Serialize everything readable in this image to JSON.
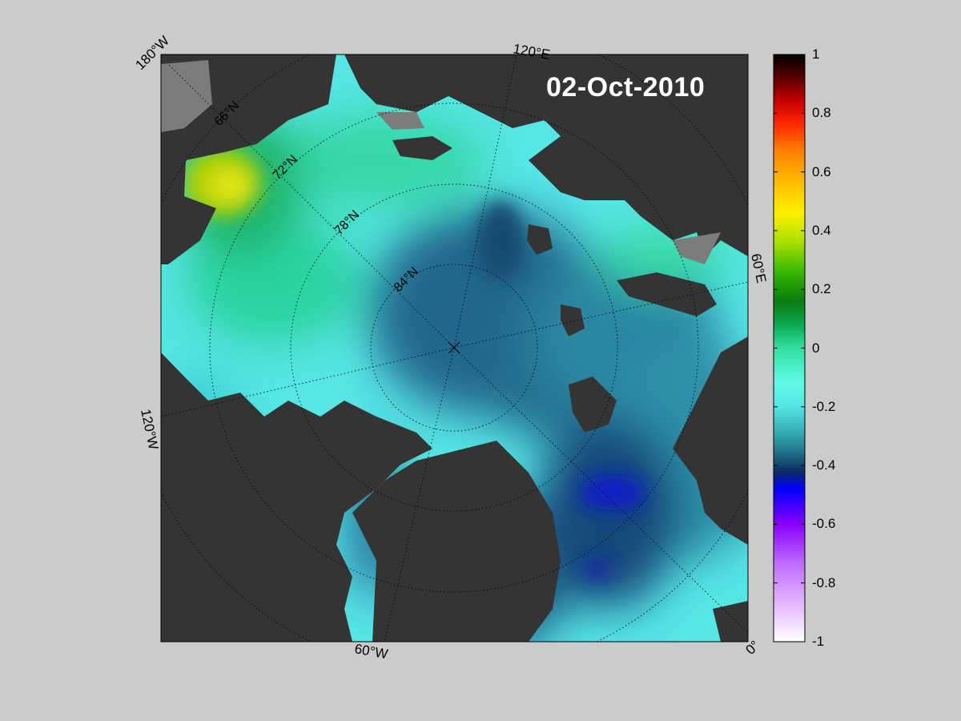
{
  "map": {
    "date": "02-Oct-2010",
    "longitude_labels": [
      "180°W",
      "120°E",
      "60°E",
      "0°",
      "60°W",
      "120°W"
    ],
    "latitude_labels": [
      "66°N",
      "72°N",
      "78°N",
      "84°N"
    ],
    "colors": {
      "background": "#cbcbcb",
      "land": "#343434",
      "ice_land": "#7c7c7c",
      "grid": "#000000"
    }
  },
  "colorbar": {
    "min": -1,
    "max": 1,
    "tick_labels": [
      "1",
      "0.8",
      "0.6",
      "0.4",
      "0.2",
      "0",
      "-0.2",
      "-0.4",
      "-0.6",
      "-0.8",
      "-1"
    ],
    "tick_values": [
      1,
      0.8,
      0.6,
      0.4,
      0.2,
      0,
      -0.2,
      -0.4,
      -0.6,
      -0.8,
      -1
    ],
    "stops": [
      {
        "v": 1.0,
        "c": "#000000"
      },
      {
        "v": 0.92,
        "c": "#5a0000"
      },
      {
        "v": 0.84,
        "c": "#c80000"
      },
      {
        "v": 0.76,
        "c": "#ff2a00"
      },
      {
        "v": 0.68,
        "c": "#ff7a00"
      },
      {
        "v": 0.58,
        "c": "#ffb400"
      },
      {
        "v": 0.46,
        "c": "#fff000"
      },
      {
        "v": 0.36,
        "c": "#a8e000"
      },
      {
        "v": 0.26,
        "c": "#38b800"
      },
      {
        "v": 0.16,
        "c": "#0a7a10"
      },
      {
        "v": 0.08,
        "c": "#0aa850"
      },
      {
        "v": 0.0,
        "c": "#30e0a0"
      },
      {
        "v": -0.12,
        "c": "#60fbe8"
      },
      {
        "v": -0.2,
        "c": "#56e4e4"
      },
      {
        "v": -0.3,
        "c": "#31a3ab"
      },
      {
        "v": -0.38,
        "c": "#19587a"
      },
      {
        "v": -0.42,
        "c": "#0c2c60"
      },
      {
        "v": -0.48,
        "c": "#0000ff"
      },
      {
        "v": -0.6,
        "c": "#8a00ff"
      },
      {
        "v": -0.74,
        "c": "#c070ff"
      },
      {
        "v": -0.88,
        "c": "#e6bcff"
      },
      {
        "v": -1.0,
        "c": "#ffffff"
      }
    ]
  }
}
